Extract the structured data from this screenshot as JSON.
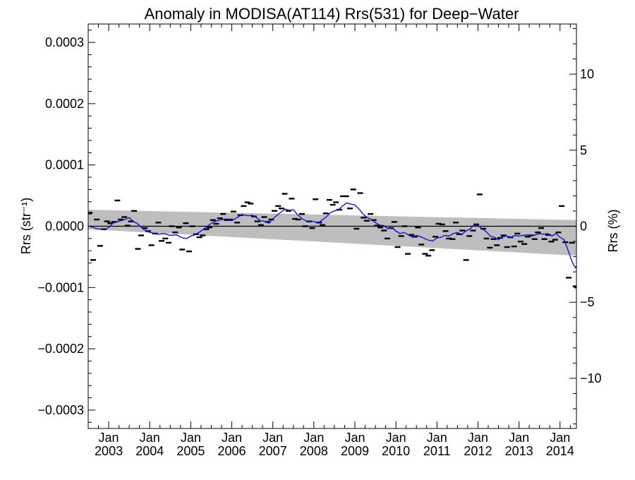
{
  "chart_data": {
    "type": "line",
    "title": "Anomaly in MODISA(AT114) Rrs(531) for Deep−Water",
    "ylabel_left": "Rrs (str⁻¹)",
    "ylabel_right": "Rrs (%)",
    "xlabel": "",
    "xlim": [
      2002.5,
      2014.4
    ],
    "ylim_left": [
      -0.00033,
      0.00033
    ],
    "ylim_right": [
      -13.3,
      13.3
    ],
    "left_ticks": [
      {
        "v": 0.0003,
        "label": "0.0003"
      },
      {
        "v": 0.0002,
        "label": "0.0002"
      },
      {
        "v": 0.0001,
        "label": "0.0001"
      },
      {
        "v": 0.0,
        "label": "0.0000"
      },
      {
        "v": -0.0001,
        "label": "−0.0001"
      },
      {
        "v": -0.0002,
        "label": "−0.0002"
      },
      {
        "v": -0.0003,
        "label": "−0.0003"
      }
    ],
    "right_ticks": [
      {
        "v": 10,
        "label": "10"
      },
      {
        "v": 5,
        "label": "5"
      },
      {
        "v": 0,
        "label": "0"
      },
      {
        "v": -5,
        "label": "−5"
      },
      {
        "v": -10,
        "label": "−10"
      }
    ],
    "x_ticks": [
      {
        "x": 2003.0,
        "month": "Jan",
        "year": "2003"
      },
      {
        "x": 2004.0,
        "month": "Jan",
        "year": "2004"
      },
      {
        "x": 2005.0,
        "month": "Jan",
        "year": "2005"
      },
      {
        "x": 2006.0,
        "month": "Jan",
        "year": "2006"
      },
      {
        "x": 2007.0,
        "month": "Jan",
        "year": "2007"
      },
      {
        "x": 2008.0,
        "month": "Jan",
        "year": "2008"
      },
      {
        "x": 2009.0,
        "month": "Jan",
        "year": "2009"
      },
      {
        "x": 2010.0,
        "month": "Jan",
        "year": "2010"
      },
      {
        "x": 2011.0,
        "month": "Jan",
        "year": "2011"
      },
      {
        "x": 2012.0,
        "month": "Jan",
        "year": "2012"
      },
      {
        "x": 2013.0,
        "month": "Jan",
        "year": "2013"
      },
      {
        "x": 2014.0,
        "month": "Jan",
        "year": "2014"
      }
    ],
    "grid": false,
    "confidence_band": {
      "color": "#bebebe",
      "upper": [
        [
          2002.5,
          2.7e-05
        ],
        [
          2014.4,
          1e-05
        ]
      ],
      "lower": [
        [
          2002.5,
          -5e-06
        ],
        [
          2014.4,
          -4.8e-05
        ]
      ]
    },
    "zero_line": 0,
    "series": [
      {
        "style": "markers",
        "color": "#000000",
        "points": [
          [
            2002.54,
            2.2e-05
          ],
          [
            2002.62,
            -5.5e-05
          ],
          [
            2002.71,
            1.1e-05
          ],
          [
            2002.79,
            -3.2e-05
          ],
          [
            2002.88,
            -5e-06
          ],
          [
            2002.96,
            8e-06
          ],
          [
            2003.04,
            5e-06
          ],
          [
            2003.13,
            7e-06
          ],
          [
            2003.21,
            4.2e-05
          ],
          [
            2003.29,
            1.1e-05
          ],
          [
            2003.38,
            1.5e-05
          ],
          [
            2003.46,
            1e-06
          ],
          [
            2003.54,
            8e-06
          ],
          [
            2003.62,
            2.5e-05
          ],
          [
            2003.71,
            -3.7e-05
          ],
          [
            2003.79,
            -1.5e-05
          ],
          [
            2003.88,
            -3e-06
          ],
          [
            2003.96,
            -8e-06
          ],
          [
            2004.04,
            -3.1e-05
          ],
          [
            2004.13,
            -1.2e-05
          ],
          [
            2004.21,
            6e-06
          ],
          [
            2004.29,
            -2.4e-05
          ],
          [
            2004.38,
            -2e-05
          ],
          [
            2004.46,
            -2.7e-05
          ],
          [
            2004.54,
            0.0
          ],
          [
            2004.62,
            -1e-05
          ],
          [
            2004.71,
            -2e-06
          ],
          [
            2004.79,
            -3.8e-05
          ],
          [
            2004.88,
            5e-06
          ],
          [
            2004.96,
            -4.1e-05
          ],
          [
            2005.04,
            0.0
          ],
          [
            2005.13,
            -1.3e-05
          ],
          [
            2005.21,
            -1.8e-05
          ],
          [
            2005.29,
            -1.5e-05
          ],
          [
            2005.38,
            -5e-06
          ],
          [
            2005.46,
            -2e-06
          ],
          [
            2005.54,
            1e-05
          ],
          [
            2005.62,
            4e-06
          ],
          [
            2005.71,
            1.3e-05
          ],
          [
            2005.79,
            2e-05
          ],
          [
            2005.88,
            1e-05
          ],
          [
            2005.96,
            1.1e-05
          ],
          [
            2006.04,
            2.4e-05
          ],
          [
            2006.13,
            6e-06
          ],
          [
            2006.21,
            1.8e-05
          ],
          [
            2006.29,
            3.3e-05
          ],
          [
            2006.38,
            3.9e-05
          ],
          [
            2006.46,
            3.7e-05
          ],
          [
            2006.54,
            1.6e-05
          ],
          [
            2006.62,
            8e-06
          ],
          [
            2006.71,
            2e-06
          ],
          [
            2006.79,
            1.5e-05
          ],
          [
            2006.88,
            7e-06
          ],
          [
            2006.96,
            1.1e-05
          ],
          [
            2007.04,
            2.5e-05
          ],
          [
            2007.13,
            3.3e-05
          ],
          [
            2007.21,
            2.9e-05
          ],
          [
            2007.29,
            5.3e-05
          ],
          [
            2007.38,
            2.5e-05
          ],
          [
            2007.46,
            4.5e-05
          ],
          [
            2007.54,
            1.2e-05
          ],
          [
            2007.62,
            1.1e-05
          ],
          [
            2007.71,
            2e-05
          ],
          [
            2007.79,
            0.0
          ],
          [
            2007.88,
            8e-06
          ],
          [
            2007.96,
            -3e-06
          ],
          [
            2008.04,
            4.4e-05
          ],
          [
            2008.13,
            6e-06
          ],
          [
            2008.21,
            2e-06
          ],
          [
            2008.29,
            2.1e-05
          ],
          [
            2008.38,
            4.3e-05
          ],
          [
            2008.46,
            3.5e-05
          ],
          [
            2008.54,
            3.9e-05
          ],
          [
            2008.62,
            2.7e-05
          ],
          [
            2008.71,
            4.9e-05
          ],
          [
            2008.79,
            4.9e-05
          ],
          [
            2008.88,
            2.9e-05
          ],
          [
            2008.96,
            6e-05
          ],
          [
            2009.04,
            -4e-06
          ],
          [
            2009.13,
            5.4e-05
          ],
          [
            2009.21,
            1.4e-05
          ],
          [
            2009.29,
            9e-06
          ],
          [
            2009.38,
            2e-05
          ],
          [
            2009.46,
            1e-05
          ],
          [
            2009.54,
            1e-06
          ],
          [
            2009.62,
            -2e-06
          ],
          [
            2009.71,
            -7e-06
          ],
          [
            2009.79,
            -2e-05
          ],
          [
            2009.88,
            -3e-06
          ],
          [
            2009.96,
            7e-06
          ],
          [
            2010.04,
            -3.4e-05
          ],
          [
            2010.13,
            -1.6e-05
          ],
          [
            2010.21,
            0.0
          ],
          [
            2010.29,
            -4.5e-05
          ],
          [
            2010.38,
            -1.4e-05
          ],
          [
            2010.46,
            -1.7e-05
          ],
          [
            2010.54,
            -2e-06
          ],
          [
            2010.62,
            -3e-05
          ],
          [
            2010.71,
            -4.5e-05
          ],
          [
            2010.79,
            -4.8e-05
          ],
          [
            2010.88,
            -3.9e-05
          ],
          [
            2010.96,
            -1.7e-05
          ],
          [
            2011.04,
            4e-06
          ],
          [
            2011.13,
            3e-06
          ],
          [
            2011.21,
            -8e-06
          ],
          [
            2011.29,
            -2e-05
          ],
          [
            2011.38,
            -2.1e-05
          ],
          [
            2011.46,
            6e-06
          ],
          [
            2011.54,
            -1.3e-05
          ],
          [
            2011.62,
            -7e-06
          ],
          [
            2011.71,
            -5.5e-05
          ],
          [
            2011.79,
            -1.6e-05
          ],
          [
            2011.88,
            -7e-06
          ],
          [
            2011.96,
            3e-06
          ],
          [
            2012.04,
            5.2e-05
          ],
          [
            2012.13,
            -4e-06
          ],
          [
            2012.21,
            -2e-05
          ],
          [
            2012.29,
            -3.5e-05
          ],
          [
            2012.38,
            -2.1e-05
          ],
          [
            2012.46,
            -3.1e-05
          ],
          [
            2012.54,
            -1.9e-05
          ],
          [
            2012.62,
            -1.5e-05
          ],
          [
            2012.71,
            -3.4e-05
          ],
          [
            2012.79,
            -1.8e-05
          ],
          [
            2012.88,
            -3.3e-05
          ],
          [
            2012.96,
            -1.2e-05
          ],
          [
            2013.04,
            -2.5e-05
          ],
          [
            2013.13,
            -2.9e-05
          ],
          [
            2013.21,
            -1.7e-05
          ],
          [
            2013.29,
            -1.5e-05
          ],
          [
            2013.38,
            -2.1e-05
          ],
          [
            2013.46,
            -1e-05
          ],
          [
            2013.54,
            -3e-06
          ],
          [
            2013.62,
            -2.1e-05
          ],
          [
            2013.71,
            -1.4e-05
          ],
          [
            2013.79,
            -2.5e-05
          ],
          [
            2013.88,
            -2.2e-05
          ],
          [
            2013.96,
            -1e-05
          ],
          [
            2014.04,
            3.3e-05
          ],
          [
            2014.13,
            -2.6e-05
          ],
          [
            2014.21,
            -8.4e-05
          ],
          [
            2014.29,
            -2.7e-05
          ],
          [
            2014.38,
            -9.8e-05
          ],
          [
            2014.42,
            -0.0001
          ]
        ]
      },
      {
        "style": "line",
        "color": "#1010e0",
        "points": [
          [
            2002.54,
            0.0
          ],
          [
            2002.7,
            -4e-06
          ],
          [
            2002.9,
            -6e-06
          ],
          [
            2003.0,
            -2e-06
          ],
          [
            2003.1,
            5e-06
          ],
          [
            2003.25,
            8e-06
          ],
          [
            2003.4,
            1.1e-05
          ],
          [
            2003.5,
            1.4e-05
          ],
          [
            2003.6,
            8e-06
          ],
          [
            2003.7,
            4e-06
          ],
          [
            2003.85,
            -5e-06
          ],
          [
            2004.0,
            -1e-05
          ],
          [
            2004.2,
            -1.3e-05
          ],
          [
            2004.35,
            -1.2e-05
          ],
          [
            2004.5,
            -1.5e-05
          ],
          [
            2004.65,
            -1.4e-05
          ],
          [
            2004.8,
            -1.9e-05
          ],
          [
            2004.9,
            -2e-05
          ],
          [
            2005.0,
            -1.6e-05
          ],
          [
            2005.1,
            -1.4e-05
          ],
          [
            2005.25,
            -8e-06
          ],
          [
            2005.4,
            0.0
          ],
          [
            2005.55,
            7e-06
          ],
          [
            2005.7,
            1e-05
          ],
          [
            2005.85,
            1.2e-05
          ],
          [
            2006.0,
            9e-06
          ],
          [
            2006.1,
            1.3e-05
          ],
          [
            2006.25,
            1.9e-05
          ],
          [
            2006.4,
            1.7e-05
          ],
          [
            2006.5,
            1.8e-05
          ],
          [
            2006.6,
            1.4e-05
          ],
          [
            2006.7,
            9e-06
          ],
          [
            2006.8,
            8e-06
          ],
          [
            2006.9,
            5e-06
          ],
          [
            2007.0,
            1.2e-05
          ],
          [
            2007.1,
            1.8e-05
          ],
          [
            2007.2,
            2.3e-05
          ],
          [
            2007.3,
            2.8e-05
          ],
          [
            2007.4,
            2.6e-05
          ],
          [
            2007.5,
            2.7e-05
          ],
          [
            2007.6,
            1.9e-05
          ],
          [
            2007.7,
            1.3e-05
          ],
          [
            2007.8,
            9e-06
          ],
          [
            2007.9,
            7e-06
          ],
          [
            2008.0,
            8e-06
          ],
          [
            2008.1,
            5e-06
          ],
          [
            2008.2,
            1e-05
          ],
          [
            2008.3,
            1.5e-05
          ],
          [
            2008.4,
            2.2e-05
          ],
          [
            2008.5,
            2.5e-05
          ],
          [
            2008.6,
            2.7e-05
          ],
          [
            2008.7,
            3.3e-05
          ],
          [
            2008.8,
            3.8e-05
          ],
          [
            2008.9,
            3.6e-05
          ],
          [
            2009.0,
            3.5e-05
          ],
          [
            2009.1,
            2.8e-05
          ],
          [
            2009.2,
            2e-05
          ],
          [
            2009.3,
            1.4e-05
          ],
          [
            2009.4,
            1.1e-05
          ],
          [
            2009.5,
            6e-06
          ],
          [
            2009.6,
            2e-06
          ],
          [
            2009.7,
            1e-06
          ],
          [
            2009.8,
            -4e-06
          ],
          [
            2009.9,
            -2e-06
          ],
          [
            2010.0,
            -8e-06
          ],
          [
            2010.1,
            -1.2e-05
          ],
          [
            2010.2,
            -1e-05
          ],
          [
            2010.3,
            -1.4e-05
          ],
          [
            2010.4,
            -1.8e-05
          ],
          [
            2010.5,
            -1.5e-05
          ],
          [
            2010.6,
            -1.7e-05
          ],
          [
            2010.7,
            -2e-05
          ],
          [
            2010.8,
            -2.3e-05
          ],
          [
            2010.9,
            -2.4e-05
          ],
          [
            2011.0,
            -1.9e-05
          ],
          [
            2011.1,
            -1.8e-05
          ],
          [
            2011.2,
            -1.5e-05
          ],
          [
            2011.3,
            -1.6e-05
          ],
          [
            2011.4,
            -1.2e-05
          ],
          [
            2011.5,
            -1e-05
          ],
          [
            2011.6,
            -1.4e-05
          ],
          [
            2011.7,
            -8e-06
          ],
          [
            2011.8,
            -5e-06
          ],
          [
            2011.9,
            2e-06
          ],
          [
            2012.0,
            1e-06
          ],
          [
            2012.1,
            -4e-06
          ],
          [
            2012.2,
            -9e-06
          ],
          [
            2012.3,
            -1.6e-05
          ],
          [
            2012.4,
            -1.8e-05
          ],
          [
            2012.5,
            -2.2e-05
          ],
          [
            2012.6,
            -1.7e-05
          ],
          [
            2012.7,
            -1.6e-05
          ],
          [
            2012.8,
            -1.8e-05
          ],
          [
            2012.9,
            -1.5e-05
          ],
          [
            2013.0,
            -1.6e-05
          ],
          [
            2013.1,
            -1.5e-05
          ],
          [
            2013.2,
            -1.4e-05
          ],
          [
            2013.3,
            -1.6e-05
          ],
          [
            2013.4,
            -1.4e-05
          ],
          [
            2013.5,
            -1.2e-05
          ],
          [
            2013.6,
            -1.3e-05
          ],
          [
            2013.7,
            -1.2e-05
          ],
          [
            2013.8,
            -1.6e-05
          ],
          [
            2013.9,
            -1.2e-05
          ],
          [
            2014.0,
            -1.8e-05
          ],
          [
            2014.1,
            -2.2e-05
          ],
          [
            2014.2,
            -4e-05
          ],
          [
            2014.28,
            -5.5e-05
          ],
          [
            2014.33,
            -6.3e-05
          ],
          [
            2014.38,
            -6.8e-05
          ],
          [
            2014.42,
            -6.2e-05
          ]
        ]
      }
    ]
  }
}
